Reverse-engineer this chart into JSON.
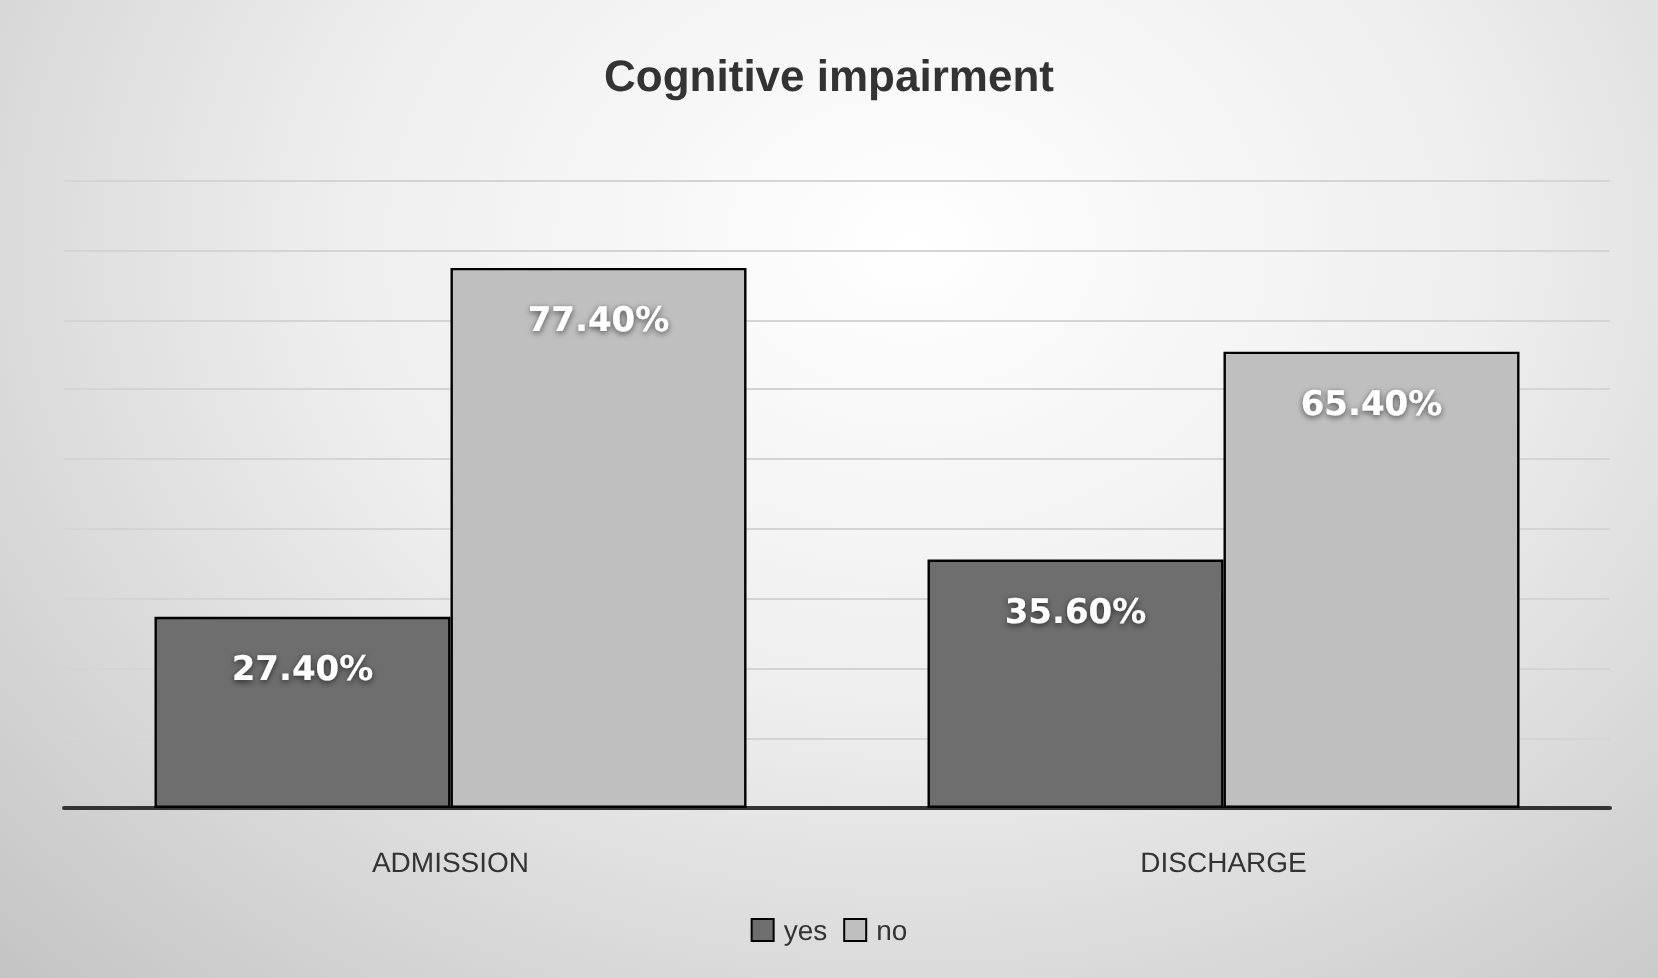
{
  "chart_data": {
    "type": "bar",
    "title": "Cognitive impairment",
    "categories": [
      "ADMISSION",
      "DISCHARGE"
    ],
    "series": [
      {
        "name": "yes",
        "color": "#6e6e6e",
        "values": [
          27.4,
          35.6
        ],
        "value_labels": [
          "27.40%",
          "35.60%"
        ]
      },
      {
        "name": "no",
        "color": "#bfbfbf",
        "values": [
          77.4,
          65.4
        ],
        "value_labels": [
          "77.40%",
          "65.40%"
        ]
      }
    ],
    "ylim": [
      0,
      90
    ],
    "grid": "y",
    "legend": "bottom",
    "tick_labels": "x"
  }
}
